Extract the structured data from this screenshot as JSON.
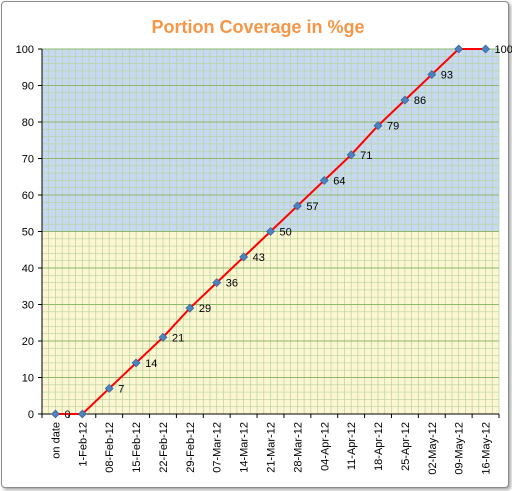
{
  "chart_data": {
    "type": "line",
    "title": "Portion Coverage in %ge",
    "xlabel": "",
    "ylabel": "",
    "categories": [
      "on date",
      "1-Feb-12",
      "08-Feb-12",
      "15-Feb-12",
      "22-Feb-12",
      "29-Feb-12",
      "07-Mar-12",
      "14-Mar-12",
      "21-Mar-12",
      "28-Mar-12",
      "04-Apr-12",
      "11-Apr-12",
      "18-Apr-12",
      "25-Apr-12",
      "02-May-12",
      "09-May-12",
      "16-May-12"
    ],
    "values": [
      0,
      0,
      7,
      14,
      21,
      29,
      36,
      43,
      50,
      57,
      64,
      71,
      79,
      86,
      93,
      100,
      100
    ],
    "data_labels": [
      "0",
      "",
      "7",
      "14",
      "21",
      "29",
      "36",
      "43",
      "50",
      "57",
      "64",
      "71",
      "79",
      "86",
      "93",
      "",
      "100"
    ],
    "y_ticks": [
      0,
      10,
      20,
      30,
      40,
      50,
      60,
      70,
      80,
      90,
      100
    ],
    "ylim": [
      0,
      100
    ],
    "grid": true,
    "legend": "none",
    "colors": {
      "line": "#ff0000",
      "marker": "#4f81bd",
      "title": "#f79646",
      "band_upper": "#c6d9f1",
      "band_lower": "#fdf6d3",
      "grid": "#b7d39a"
    }
  }
}
